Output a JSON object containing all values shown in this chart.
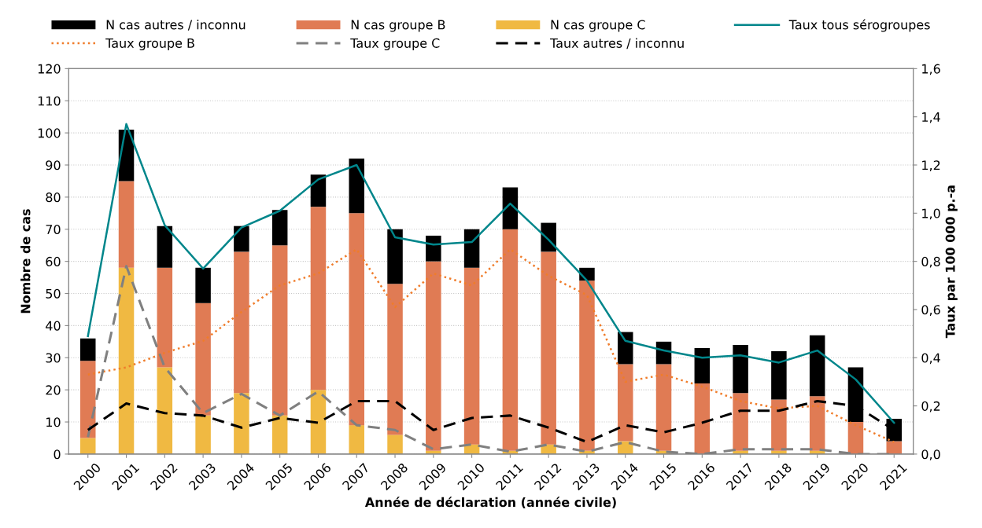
{
  "chart_data": {
    "type": "bar",
    "stacked": true,
    "xlabel": "Année de déclaration (année civile)",
    "ylabel": "Nombre de cas",
    "y2label": "Taux par 100 000 p.-a",
    "categories": [
      "2000",
      "2001",
      "2002",
      "2003",
      "2004",
      "2005",
      "2006",
      "2007",
      "2008",
      "2009",
      "2010",
      "2011",
      "2012",
      "2013",
      "2014",
      "2015",
      "2016",
      "2017",
      "2018",
      "2019",
      "2020",
      "2021"
    ],
    "series": [
      {
        "name": "N cas groupe C",
        "color": "#f0b942",
        "values": [
          5,
          58,
          27,
          12,
          19,
          12,
          20,
          9,
          6,
          1,
          3,
          1,
          3,
          1,
          4,
          1,
          0,
          1,
          1,
          1,
          0,
          0
        ]
      },
      {
        "name": "N cas groupe B",
        "color": "#e07b54",
        "values": [
          24,
          27,
          31,
          35,
          44,
          53,
          57,
          66,
          47,
          59,
          55,
          69,
          60,
          53,
          24,
          27,
          22,
          18,
          16,
          17,
          10,
          4
        ]
      },
      {
        "name": "N cas autres / inconnu",
        "color": "#000000",
        "values": [
          7,
          16,
          13,
          11,
          8,
          11,
          10,
          17,
          17,
          8,
          12,
          13,
          9,
          4,
          10,
          7,
          11,
          15,
          15,
          19,
          17,
          7
        ]
      },
      {
        "name": "Taux tous sérogroupes",
        "type": "line",
        "axis": "y2",
        "color": "#00868b",
        "line_style": "solid",
        "values": [
          0.49,
          1.37,
          0.95,
          0.77,
          0.94,
          1.01,
          1.14,
          1.2,
          0.9,
          0.87,
          0.88,
          1.04,
          0.89,
          0.72,
          0.47,
          0.43,
          0.4,
          0.41,
          0.38,
          0.43,
          0.31,
          0.13
        ]
      },
      {
        "name": "Taux groupe B",
        "type": "line",
        "axis": "y2",
        "color": "#f07c2a",
        "line_style": "dotted",
        "values": [
          0.33,
          0.36,
          0.42,
          0.47,
          0.59,
          0.7,
          0.75,
          0.85,
          0.61,
          0.75,
          0.7,
          0.85,
          0.74,
          0.66,
          0.3,
          0.33,
          0.28,
          0.22,
          0.19,
          0.2,
          0.12,
          0.05
        ]
      },
      {
        "name": "Taux groupe C",
        "type": "line",
        "axis": "y2",
        "color": "#808080",
        "line_style": "dashed",
        "values": [
          0.07,
          0.78,
          0.36,
          0.17,
          0.25,
          0.16,
          0.26,
          0.12,
          0.1,
          0.02,
          0.04,
          0.01,
          0.04,
          0.01,
          0.05,
          0.01,
          0.0,
          0.02,
          0.02,
          0.02,
          0.0,
          0.0
        ]
      },
      {
        "name": "Taux autres / inconnu",
        "type": "line",
        "axis": "y2",
        "color": "#000000",
        "line_style": "dashed",
        "values": [
          0.1,
          0.21,
          0.17,
          0.16,
          0.11,
          0.15,
          0.13,
          0.22,
          0.22,
          0.1,
          0.15,
          0.16,
          0.11,
          0.05,
          0.12,
          0.09,
          0.13,
          0.18,
          0.18,
          0.22,
          0.2,
          0.1
        ]
      }
    ],
    "ylim": [
      0,
      120
    ],
    "yticks": [
      0,
      10,
      20,
      30,
      40,
      50,
      60,
      70,
      80,
      90,
      100,
      110,
      120
    ],
    "y2lim": [
      0,
      1.6
    ],
    "y2ticks": [
      {
        "value": 0,
        "label": "0,0"
      },
      {
        "value": 0.2,
        "label": "0,2"
      },
      {
        "value": 0.4,
        "label": "0,4"
      },
      {
        "value": 0.6,
        "label": "0,6"
      },
      {
        "value": 0.8,
        "label": "0,8"
      },
      {
        "value": 1.0,
        "label": "1,0"
      },
      {
        "value": 1.2,
        "label": "1,2"
      },
      {
        "value": 1.4,
        "label": "1,4"
      },
      {
        "value": 1.6,
        "label": "1,6"
      }
    ],
    "grid": "y",
    "legend": "top",
    "marker": "none"
  }
}
